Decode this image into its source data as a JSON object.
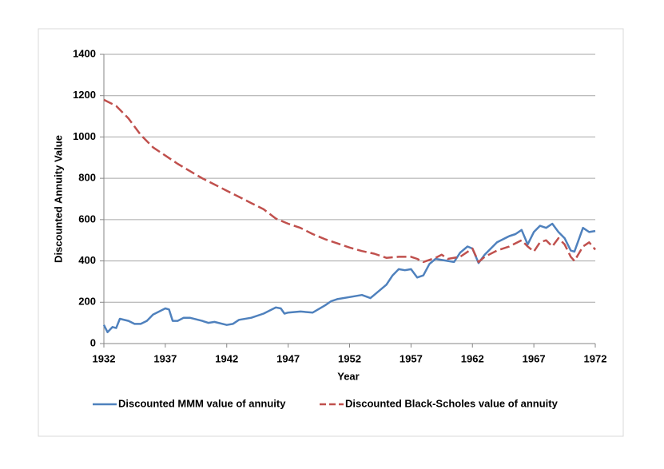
{
  "chart_data": {
    "type": "line",
    "x_label": "Year",
    "y_label": "Discounted Annuity Value",
    "xlim": [
      1932,
      1972
    ],
    "xticks": [
      1932,
      1937,
      1942,
      1947,
      1952,
      1957,
      1962,
      1967,
      1972
    ],
    "ylim": [
      0,
      1400
    ],
    "yticks": [
      0,
      200,
      400,
      600,
      800,
      1000,
      1200,
      1400
    ],
    "grid": true,
    "legend": "bottom",
    "series": [
      {
        "name": "Discounted MMM value of annuity",
        "color": "#4f81bd",
        "dash": "solid",
        "x": [
          1932,
          1932.3,
          1932.7,
          1933,
          1933.3,
          1934,
          1934.5,
          1935,
          1935.5,
          1936,
          1936.5,
          1937,
          1937.3,
          1937.6,
          1938,
          1938.5,
          1939,
          1940,
          1940.5,
          1941,
          1942,
          1942.5,
          1943,
          1944,
          1945,
          1946,
          1946.4,
          1946.7,
          1947,
          1948,
          1949,
          1950,
          1950.5,
          1951,
          1952,
          1953,
          1953.7,
          1954,
          1955,
          1955.5,
          1956,
          1956.5,
          1957,
          1957.5,
          1958,
          1958.5,
          1959,
          1960,
          1960.5,
          1961,
          1961.6,
          1962,
          1962.5,
          1963,
          1964,
          1965,
          1965.5,
          1966,
          1966.5,
          1967,
          1967.5,
          1968,
          1968.5,
          1969,
          1969.5,
          1970,
          1970.3,
          1971,
          1971.5,
          1972
        ],
        "values": [
          90,
          55,
          80,
          75,
          120,
          110,
          95,
          95,
          110,
          140,
          155,
          170,
          165,
          110,
          110,
          125,
          125,
          110,
          100,
          105,
          90,
          95,
          115,
          125,
          145,
          175,
          170,
          145,
          150,
          155,
          150,
          185,
          205,
          215,
          225,
          235,
          220,
          235,
          285,
          330,
          360,
          355,
          360,
          320,
          330,
          385,
          410,
          400,
          395,
          440,
          470,
          460,
          390,
          430,
          490,
          520,
          530,
          550,
          480,
          540,
          570,
          560,
          580,
          540,
          510,
          450,
          445,
          560,
          540,
          545
        ]
      },
      {
        "name": "Discounted Black-Scholes value of annuity",
        "color": "#c0504d",
        "dash": "dashed",
        "x": [
          1932,
          1933,
          1934,
          1935,
          1936,
          1937,
          1938,
          1939,
          1940,
          1941,
          1942,
          1943,
          1944,
          1945,
          1946,
          1947,
          1948,
          1949,
          1950,
          1951,
          1952,
          1953,
          1954,
          1955,
          1956,
          1957,
          1957.5,
          1958,
          1959,
          1959.5,
          1960,
          1961,
          1962,
          1962.5,
          1963,
          1964,
          1965,
          1966,
          1966.5,
          1967,
          1967.5,
          1968,
          1968.5,
          1969,
          1969.5,
          1970,
          1970.3,
          1971,
          1971.5,
          1972
        ],
        "values": [
          1180,
          1150,
          1090,
          1010,
          950,
          910,
          870,
          835,
          800,
          770,
          740,
          710,
          680,
          650,
          605,
          580,
          560,
          530,
          505,
          485,
          465,
          448,
          435,
          415,
          420,
          420,
          410,
          395,
          415,
          430,
          410,
          420,
          460,
          395,
          420,
          450,
          470,
          500,
          470,
          445,
          490,
          500,
          470,
          510,
          480,
          420,
          400,
          470,
          490,
          455
        ]
      }
    ]
  }
}
